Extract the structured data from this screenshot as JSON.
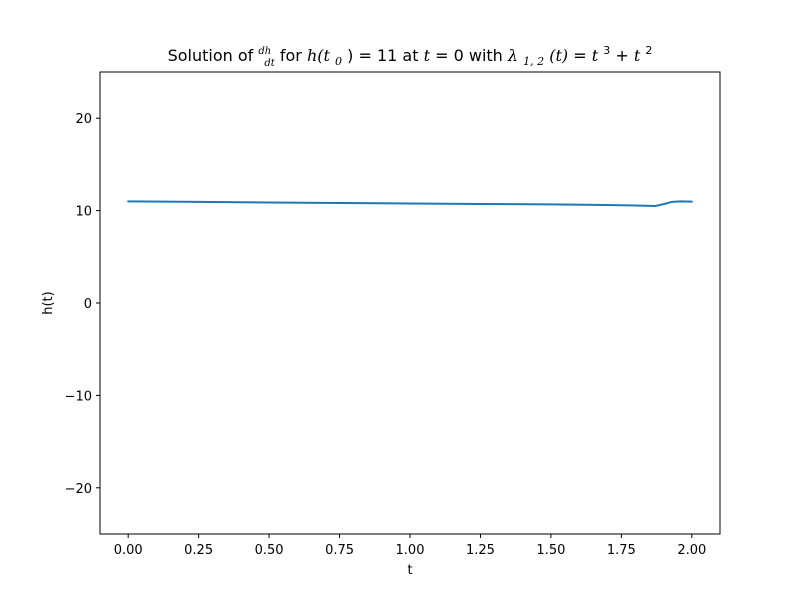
{
  "chart_data": {
    "type": "line",
    "title": {
      "prefix": "Solution of ",
      "frac_num": "dh",
      "frac_den": "dt",
      "mid1": " for ",
      "h_expr": "h(t",
      "h_sub": "0",
      "h_close": ")",
      "eq1": " = 11 at ",
      "t_var": "t",
      "eq2": " = 0 with ",
      "lambda": "λ",
      "lambda_sub": "1, 2",
      "lambda_arg": "(t)",
      "eq3": " = ",
      "t1": "t",
      "p1": "3",
      "plus": " + ",
      "t2": "t",
      "p2": "2"
    },
    "xlabel": "t",
    "ylabel": "h(t)",
    "xlim": [
      -0.1,
      2.1
    ],
    "ylim": [
      -25,
      25
    ],
    "xticks": [
      0.0,
      0.25,
      0.5,
      0.75,
      1.0,
      1.25,
      1.5,
      1.75,
      2.0
    ],
    "xtick_labels": [
      "0.00",
      "0.25",
      "0.50",
      "0.75",
      "1.00",
      "1.25",
      "1.50",
      "1.75",
      "2.00"
    ],
    "yticks": [
      -20,
      -10,
      0,
      10,
      20
    ],
    "ytick_labels": [
      "−20",
      "−10",
      "0",
      "10",
      "20"
    ],
    "grid": false,
    "legend": "none",
    "series": [
      {
        "color": "#1f77b4",
        "x": [
          0.0,
          0.25,
          0.5,
          0.75,
          1.0,
          1.25,
          1.5,
          1.7,
          1.8,
          1.87,
          1.9,
          1.93,
          1.96,
          2.0
        ],
        "y": [
          11.0,
          10.94,
          10.88,
          10.82,
          10.77,
          10.72,
          10.67,
          10.6,
          10.55,
          10.5,
          10.7,
          10.95,
          11.0,
          10.97
        ]
      }
    ]
  }
}
